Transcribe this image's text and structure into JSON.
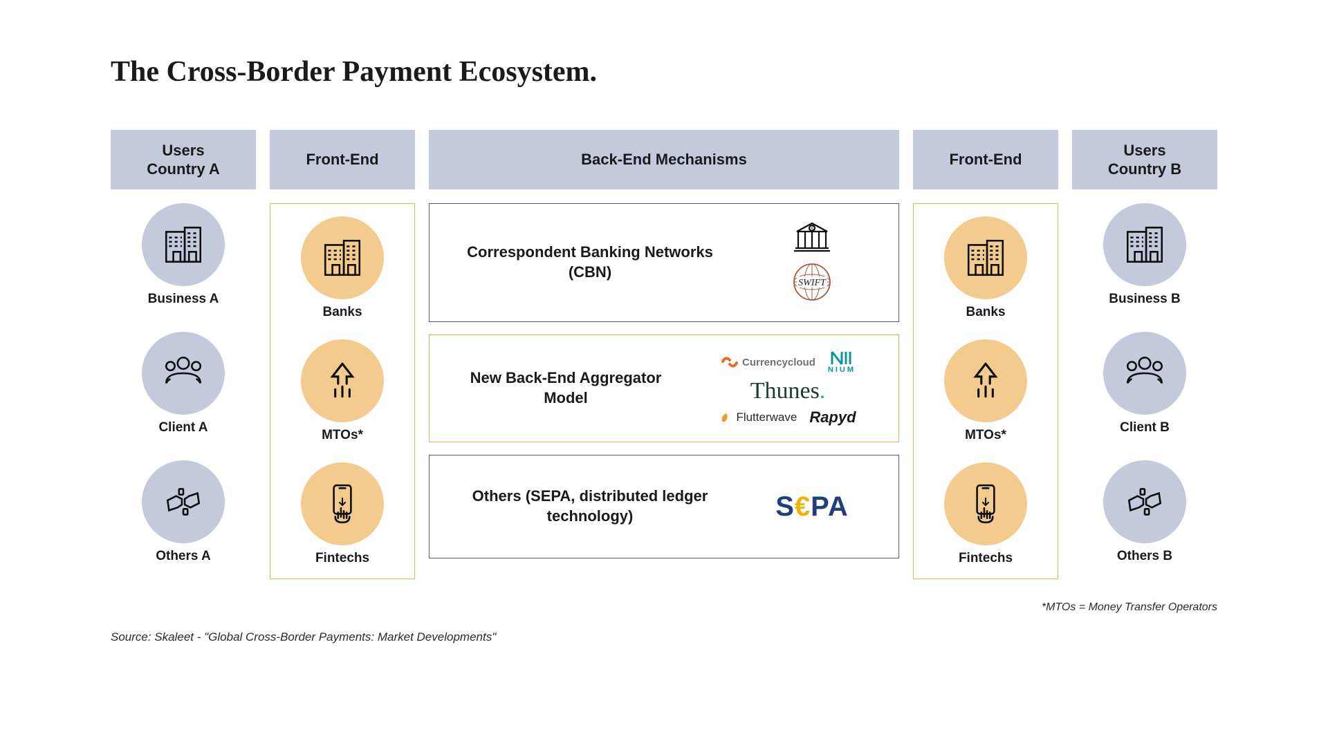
{
  "title": "The Cross-Border Payment Ecosystem.",
  "columns": {
    "usersA": "Users\nCountry A",
    "frontA": "Front-End",
    "backend": "Back-End Mechanisms",
    "frontB": "Front-End",
    "usersB": "Users\nCountry B"
  },
  "colors": {
    "headerBg": "#c5c9dc",
    "purple": "#c5c9dc",
    "orange": "#f4cb8f",
    "borderOrange": "#e8ae5b",
    "borderPurple": "#4a5899",
    "sepaBlue": "#1f3f7d",
    "sepaYellow": "#f0b400",
    "thunesGreen": "#1a3d2e",
    "thunesDot": "#2db26d",
    "niumTeal": "#0b94a0",
    "ccOrange": "#e86a2a",
    "ccGrey": "#6f7176",
    "flutterOrange": "#f29a2e",
    "swiftCircle": "#9a5f3c"
  },
  "usersA": [
    {
      "label": "Business A",
      "icon": "building"
    },
    {
      "label": "Client A",
      "icon": "people"
    },
    {
      "label": "Others A",
      "icon": "hands"
    }
  ],
  "usersB": [
    {
      "label": "Business B",
      "icon": "building"
    },
    {
      "label": "Client B",
      "icon": "people"
    },
    {
      "label": "Others B",
      "icon": "hands"
    }
  ],
  "frontA": [
    {
      "label": "Banks",
      "icon": "building"
    },
    {
      "label": "MTOs*",
      "icon": "arrowbars"
    },
    {
      "label": "Fintechs",
      "icon": "phonehand"
    }
  ],
  "frontB": [
    {
      "label": "Banks",
      "icon": "building"
    },
    {
      "label": "MTOs*",
      "icon": "arrowbars"
    },
    {
      "label": "Fintechs",
      "icon": "phonehand"
    }
  ],
  "backend": [
    {
      "title": "Correspondent Banking Networks (CBN)",
      "borderColor": "#4a5899",
      "logos": [
        "bank-dollar",
        "swift"
      ]
    },
    {
      "title": "New Back-End Aggregator Model",
      "borderColor": "#e8ae5b",
      "logos": [
        "currencycloud",
        "nium",
        "thunes",
        "flutterwave",
        "rapyd"
      ]
    },
    {
      "title": "Others (SEPA, distributed ledger technology)",
      "borderColor": "#4a5899",
      "logos": [
        "sepa"
      ]
    }
  ],
  "footnote": "*MTOs = Money Transfer Operators",
  "source": "Source: Skaleet - \"Global Cross-Border Payments: Market Developments\""
}
